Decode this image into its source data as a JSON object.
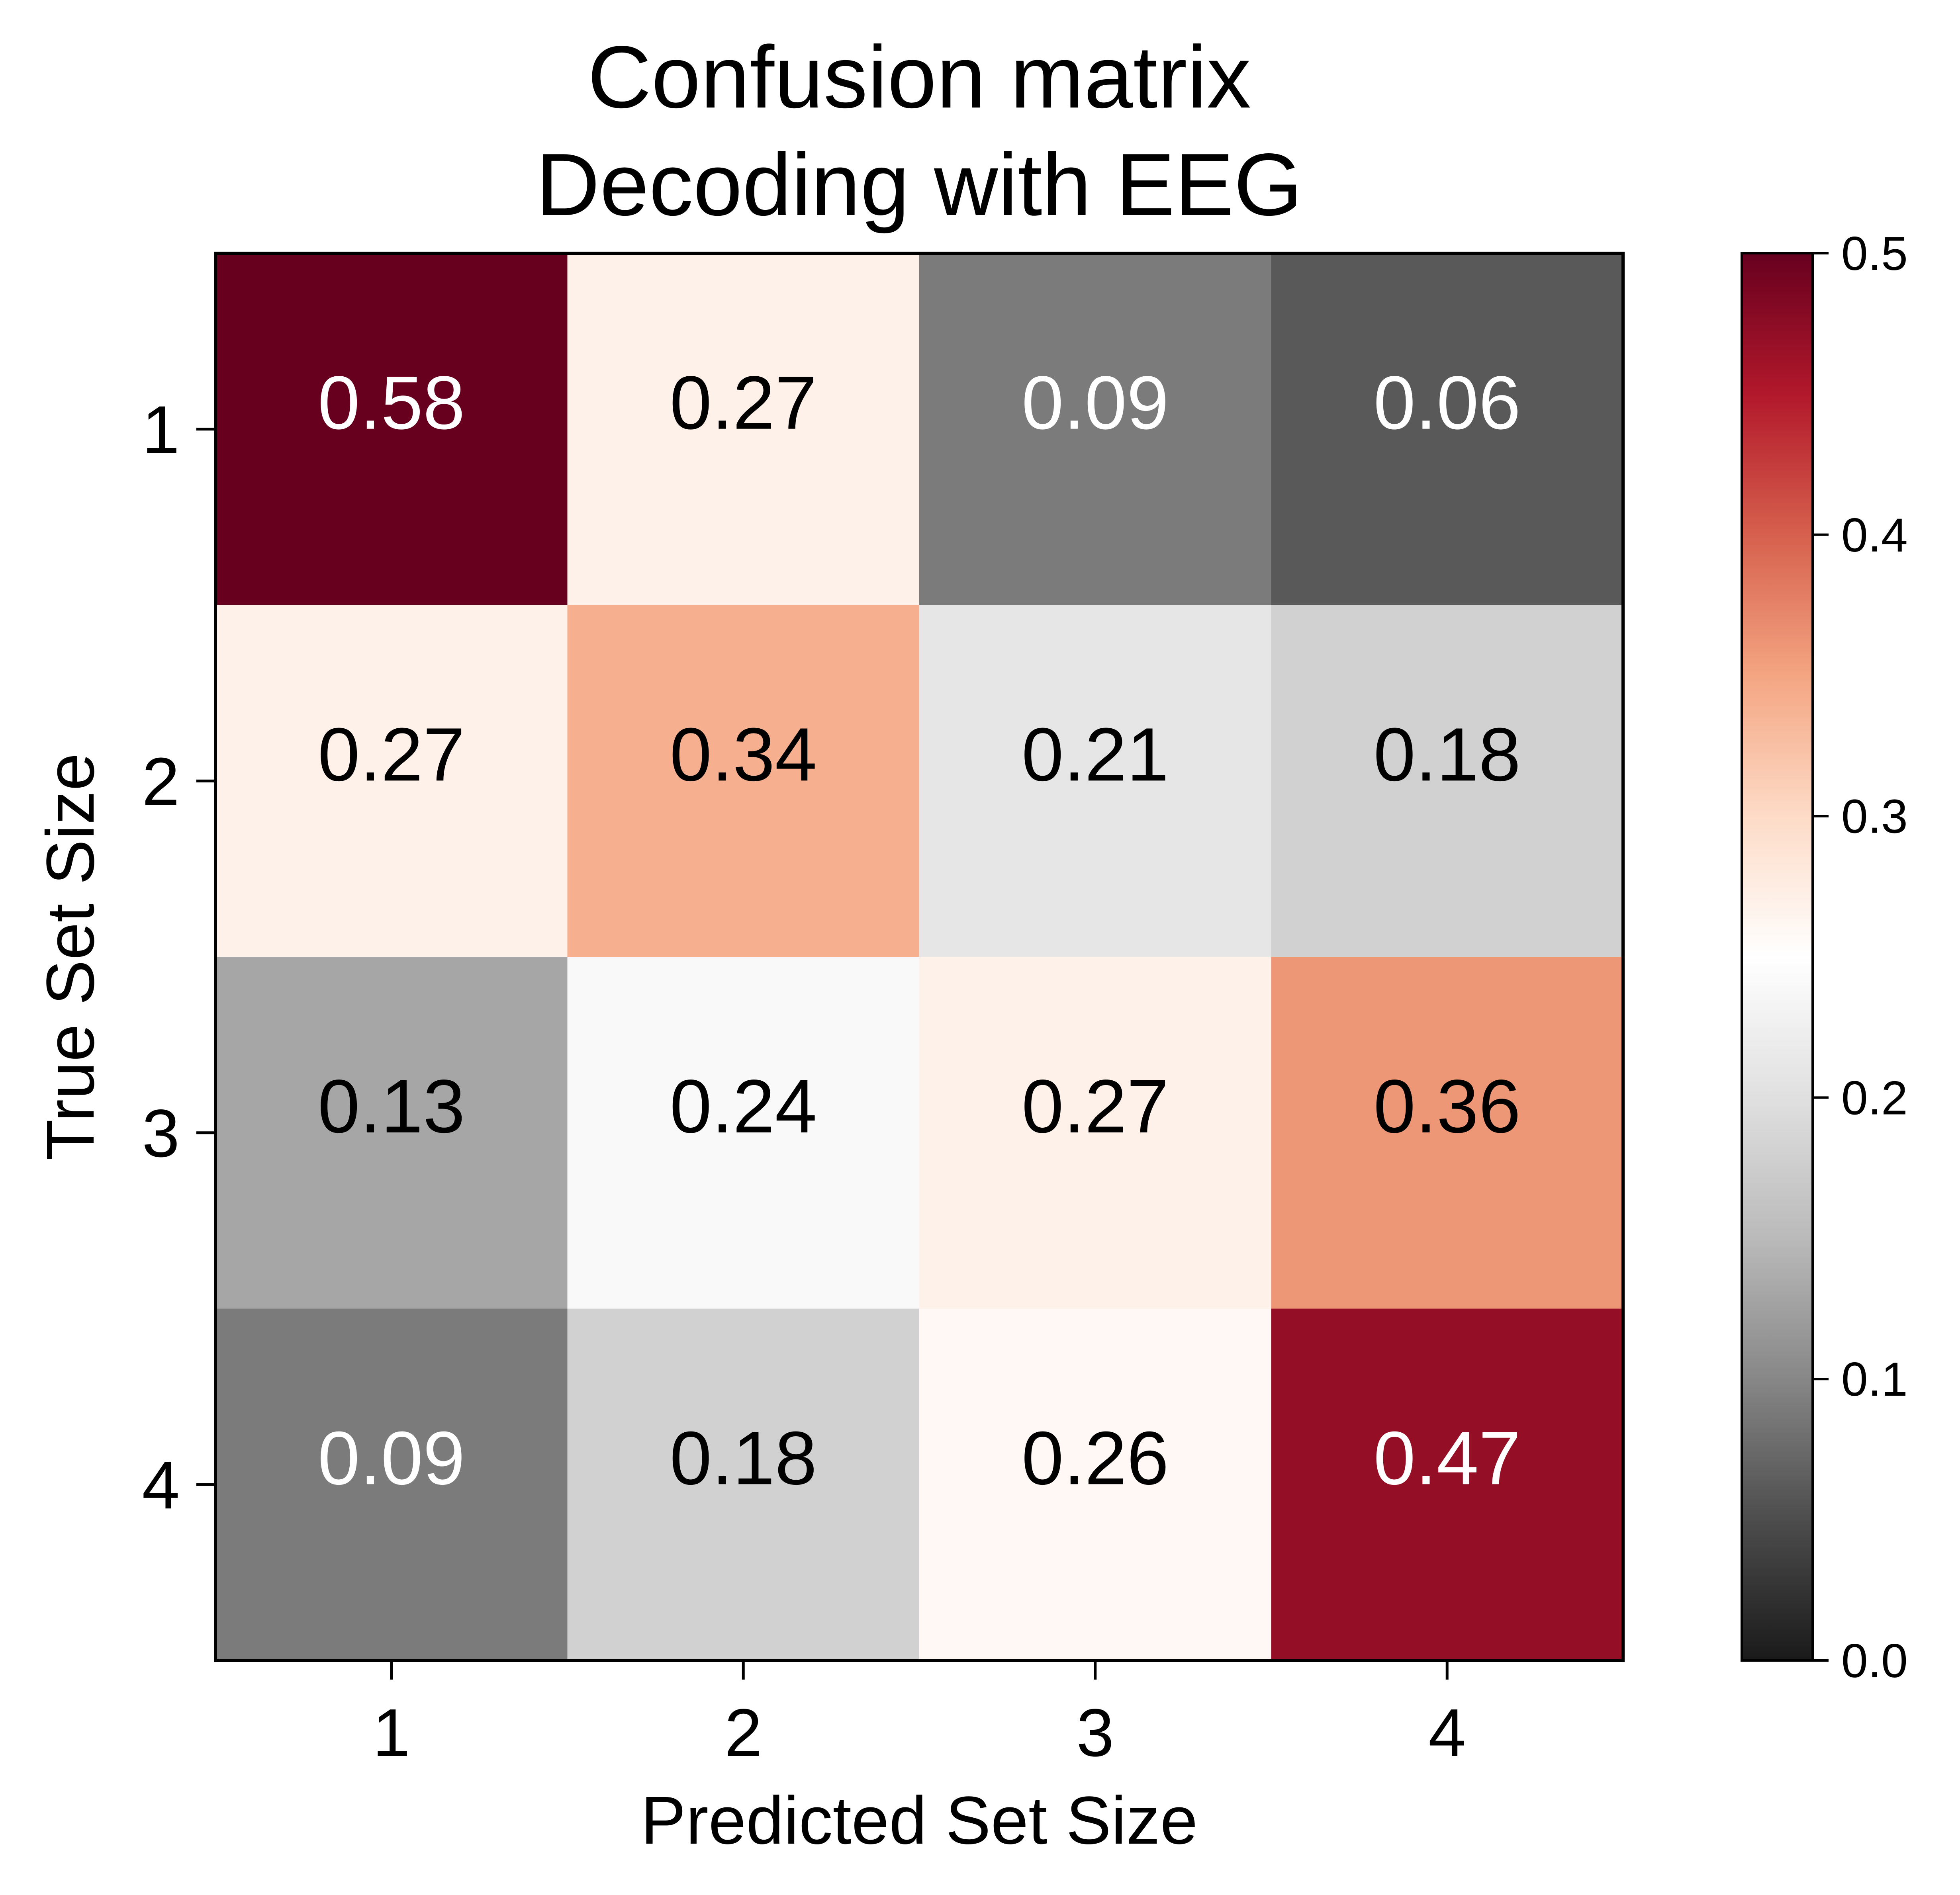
{
  "chart_data": {
    "type": "heatmap",
    "title": "Confusion matrix\nDecoding with EEG",
    "title_lines": [
      "Confusion matrix",
      "Decoding with EEG"
    ],
    "xlabel": "Predicted Set Size",
    "ylabel": "True Set Size",
    "x_categories": [
      "1",
      "2",
      "3",
      "4"
    ],
    "y_categories": [
      "1",
      "2",
      "3",
      "4"
    ],
    "values": [
      [
        0.58,
        0.27,
        0.09,
        0.06
      ],
      [
        0.27,
        0.34,
        0.21,
        0.18
      ],
      [
        0.13,
        0.24,
        0.27,
        0.36
      ],
      [
        0.09,
        0.18,
        0.26,
        0.47
      ]
    ],
    "value_labels": [
      [
        "0.58",
        "0.27",
        "0.09",
        "0.06"
      ],
      [
        "0.27",
        "0.34",
        "0.21",
        "0.18"
      ],
      [
        "0.13",
        "0.24",
        "0.27",
        "0.36"
      ],
      [
        "0.09",
        "0.18",
        "0.26",
        "0.47"
      ]
    ],
    "colorbar": {
      "vmin": 0.0,
      "vmax": 0.5,
      "ticks": [
        0.0,
        0.1,
        0.2,
        0.3,
        0.4,
        0.5
      ],
      "tick_labels": [
        "0.0",
        "0.1",
        "0.2",
        "0.3",
        "0.4",
        "0.5"
      ],
      "colormap": "gray-to-red (RdGy_r)"
    },
    "colormap_stops": [
      {
        "v": 0.0,
        "color": "#1a1a1a"
      },
      {
        "v": 0.05,
        "color": "#4d4d4d"
      },
      {
        "v": 0.1,
        "color": "#878787"
      },
      {
        "v": 0.15,
        "color": "#bababa"
      },
      {
        "v": 0.2,
        "color": "#e0e0e0"
      },
      {
        "v": 0.25,
        "color": "#ffffff"
      },
      {
        "v": 0.3,
        "color": "#fddbc7"
      },
      {
        "v": 0.35,
        "color": "#f4a582"
      },
      {
        "v": 0.4,
        "color": "#d6604d"
      },
      {
        "v": 0.45,
        "color": "#b2182b"
      },
      {
        "v": 0.5,
        "color": "#67001f"
      }
    ]
  }
}
